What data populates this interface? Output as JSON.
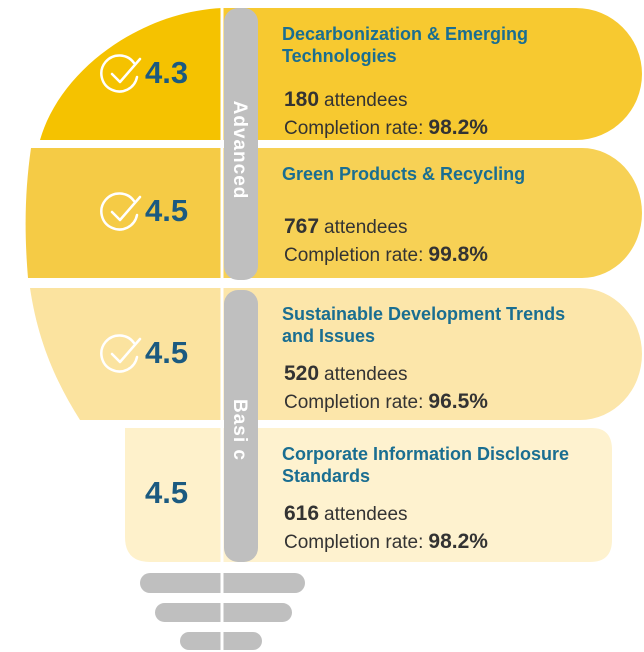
{
  "levels": [
    "Advanced",
    "Basi c"
  ],
  "courses": [
    {
      "score": "4.3",
      "title": [
        "Decarbonization & Emerging",
        "Technologies"
      ],
      "attendees": "180",
      "attendees_label": "attendees",
      "completion_label": "Completion rate:",
      "completion": "98.2%"
    },
    {
      "score": "4.5",
      "title": [
        "Green Products & Recycling"
      ],
      "attendees": "767",
      "attendees_label": "attendees",
      "completion_label": "Completion rate:",
      "completion": "99.8%"
    },
    {
      "score": "4.5",
      "title": [
        "Sustainable Development Trends",
        "and Issues"
      ],
      "attendees": "520",
      "attendees_label": "attendees",
      "completion_label": "Completion rate:",
      "completion": "96.5%"
    },
    {
      "score": "4.5",
      "title": [
        "Corporate Information Disclosure",
        "Standards"
      ],
      "attendees": "616",
      "attendees_label": "attendees",
      "completion_label": "Completion rate:",
      "completion": "98.2%"
    }
  ]
}
